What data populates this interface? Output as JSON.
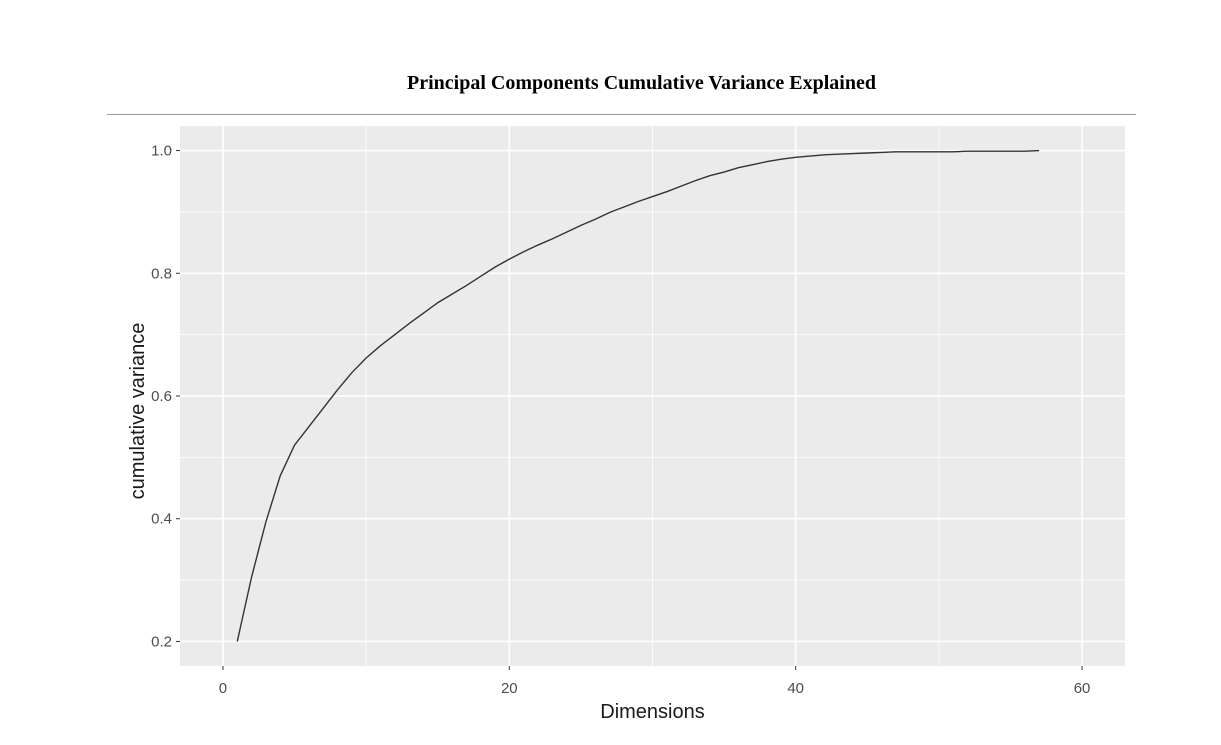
{
  "header": {
    "title": "Principal Components Cumulative Variance Explained"
  },
  "chart_data": {
    "type": "line",
    "title": "Principal Components Cumulative Variance Explained",
    "xlabel": "Dimensions",
    "ylabel": "cumulative variance",
    "xlim": [
      -3,
      63
    ],
    "ylim": [
      0.16,
      1.04
    ],
    "x_ticks": [
      0,
      20,
      40,
      60
    ],
    "y_ticks": [
      0.2,
      0.4,
      0.6,
      0.8,
      1.0
    ],
    "x_tick_labels": [
      "0",
      "20",
      "40",
      "60"
    ],
    "y_tick_labels": [
      "0.2",
      "0.4",
      "0.6",
      "0.8",
      "1.0"
    ],
    "grid": true,
    "panel_background": "#ebebeb",
    "grid_color": "#ffffff",
    "line_color": "#333333",
    "series": [
      {
        "x": [
          1,
          2,
          3,
          4,
          5,
          6,
          7,
          8,
          9,
          10,
          11,
          12,
          13,
          14,
          15,
          16,
          17,
          18,
          19,
          20,
          21,
          22,
          23,
          24,
          25,
          26,
          27,
          28,
          29,
          30,
          31,
          32,
          33,
          34,
          35,
          36,
          37,
          38,
          39,
          40,
          41,
          42,
          43,
          44,
          45,
          46,
          47,
          48,
          49,
          50,
          51,
          52,
          53,
          54,
          55,
          56,
          57
        ],
        "y": [
          0.2,
          0.305,
          0.395,
          0.47,
          0.52,
          0.55,
          0.58,
          0.61,
          0.638,
          0.662,
          0.682,
          0.7,
          0.718,
          0.735,
          0.752,
          0.766,
          0.78,
          0.795,
          0.81,
          0.823,
          0.835,
          0.846,
          0.856,
          0.867,
          0.878,
          0.888,
          0.899,
          0.908,
          0.917,
          0.925,
          0.933,
          0.942,
          0.951,
          0.959,
          0.965,
          0.972,
          0.977,
          0.982,
          0.986,
          0.989,
          0.991,
          0.993,
          0.994,
          0.995,
          0.996,
          0.997,
          0.998,
          0.998,
          0.998,
          0.998,
          0.998,
          0.999,
          0.999,
          0.999,
          0.999,
          0.999,
          1.0
        ]
      }
    ]
  }
}
